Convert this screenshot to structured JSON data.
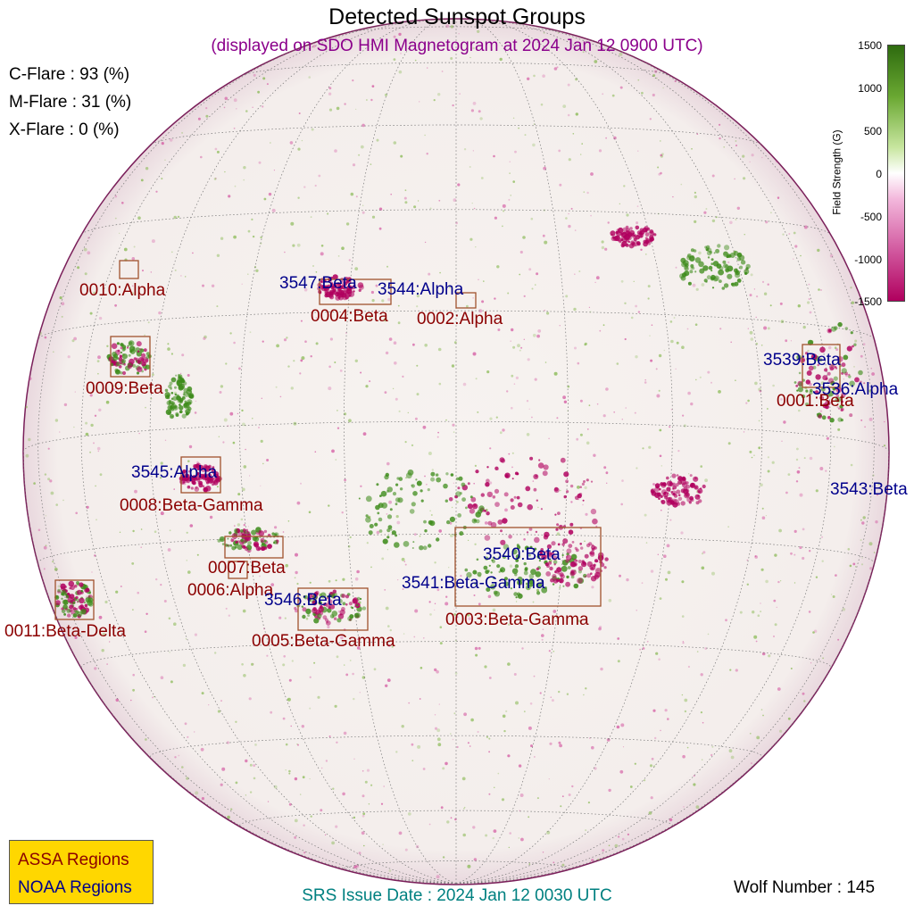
{
  "title": "Detected Sunspot Groups",
  "subtitle": "(displayed on SDO HMI Magnetogram at 2024 Jan 12 0900 UTC)",
  "flare_probabilities": [
    {
      "label": "C-Flare : 93 (%)"
    },
    {
      "label": "M-Flare : 31 (%)"
    },
    {
      "label": "X-Flare :  0 (%)"
    }
  ],
  "colorbar": {
    "label": "Field Strength (G)",
    "ticks": [
      "1500",
      "1000",
      "500",
      "0",
      "-500",
      "-1000",
      "-1500"
    ],
    "colors": {
      "positive": "#2e6b0f",
      "zero": "#ffffff",
      "negative": "#b0005e"
    }
  },
  "colors": {
    "assa": "#8b0000",
    "noaa": "#00008b",
    "box": "#a0522d",
    "srs": "#008080",
    "subtitle": "#8b008b",
    "legend_bg": "#ffd700"
  },
  "assa_regions": [
    {
      "label": "0001:Beta"
    },
    {
      "label": "0002:Alpha"
    },
    {
      "label": "0003:Beta-Gamma"
    },
    {
      "label": "0004:Beta"
    },
    {
      "label": "0005:Beta-Gamma"
    },
    {
      "label": "0006:Alpha"
    },
    {
      "label": "0007:Beta"
    },
    {
      "label": "0008:Beta-Gamma"
    },
    {
      "label": "0009:Beta"
    },
    {
      "label": "0010:Alpha"
    },
    {
      "label": "0011:Beta-Delta"
    }
  ],
  "noaa_regions": [
    {
      "label": "3536:Alpha"
    },
    {
      "label": "3539:Beta"
    },
    {
      "label": "3540:Beta"
    },
    {
      "label": "3541:Beta-Gamma"
    },
    {
      "label": "3543:Beta"
    },
    {
      "label": "3544:Alpha"
    },
    {
      "label": "3545:Alpha"
    },
    {
      "label": "3546:Beta"
    },
    {
      "label": "3547:Beta"
    }
  ],
  "legend": {
    "assa": "ASSA Regions",
    "noaa": "NOAA Regions"
  },
  "srs_issue": "SRS Issue Date : 2024 Jan 12 0030 UTC",
  "wolf_number": "Wolf Number : 145"
}
